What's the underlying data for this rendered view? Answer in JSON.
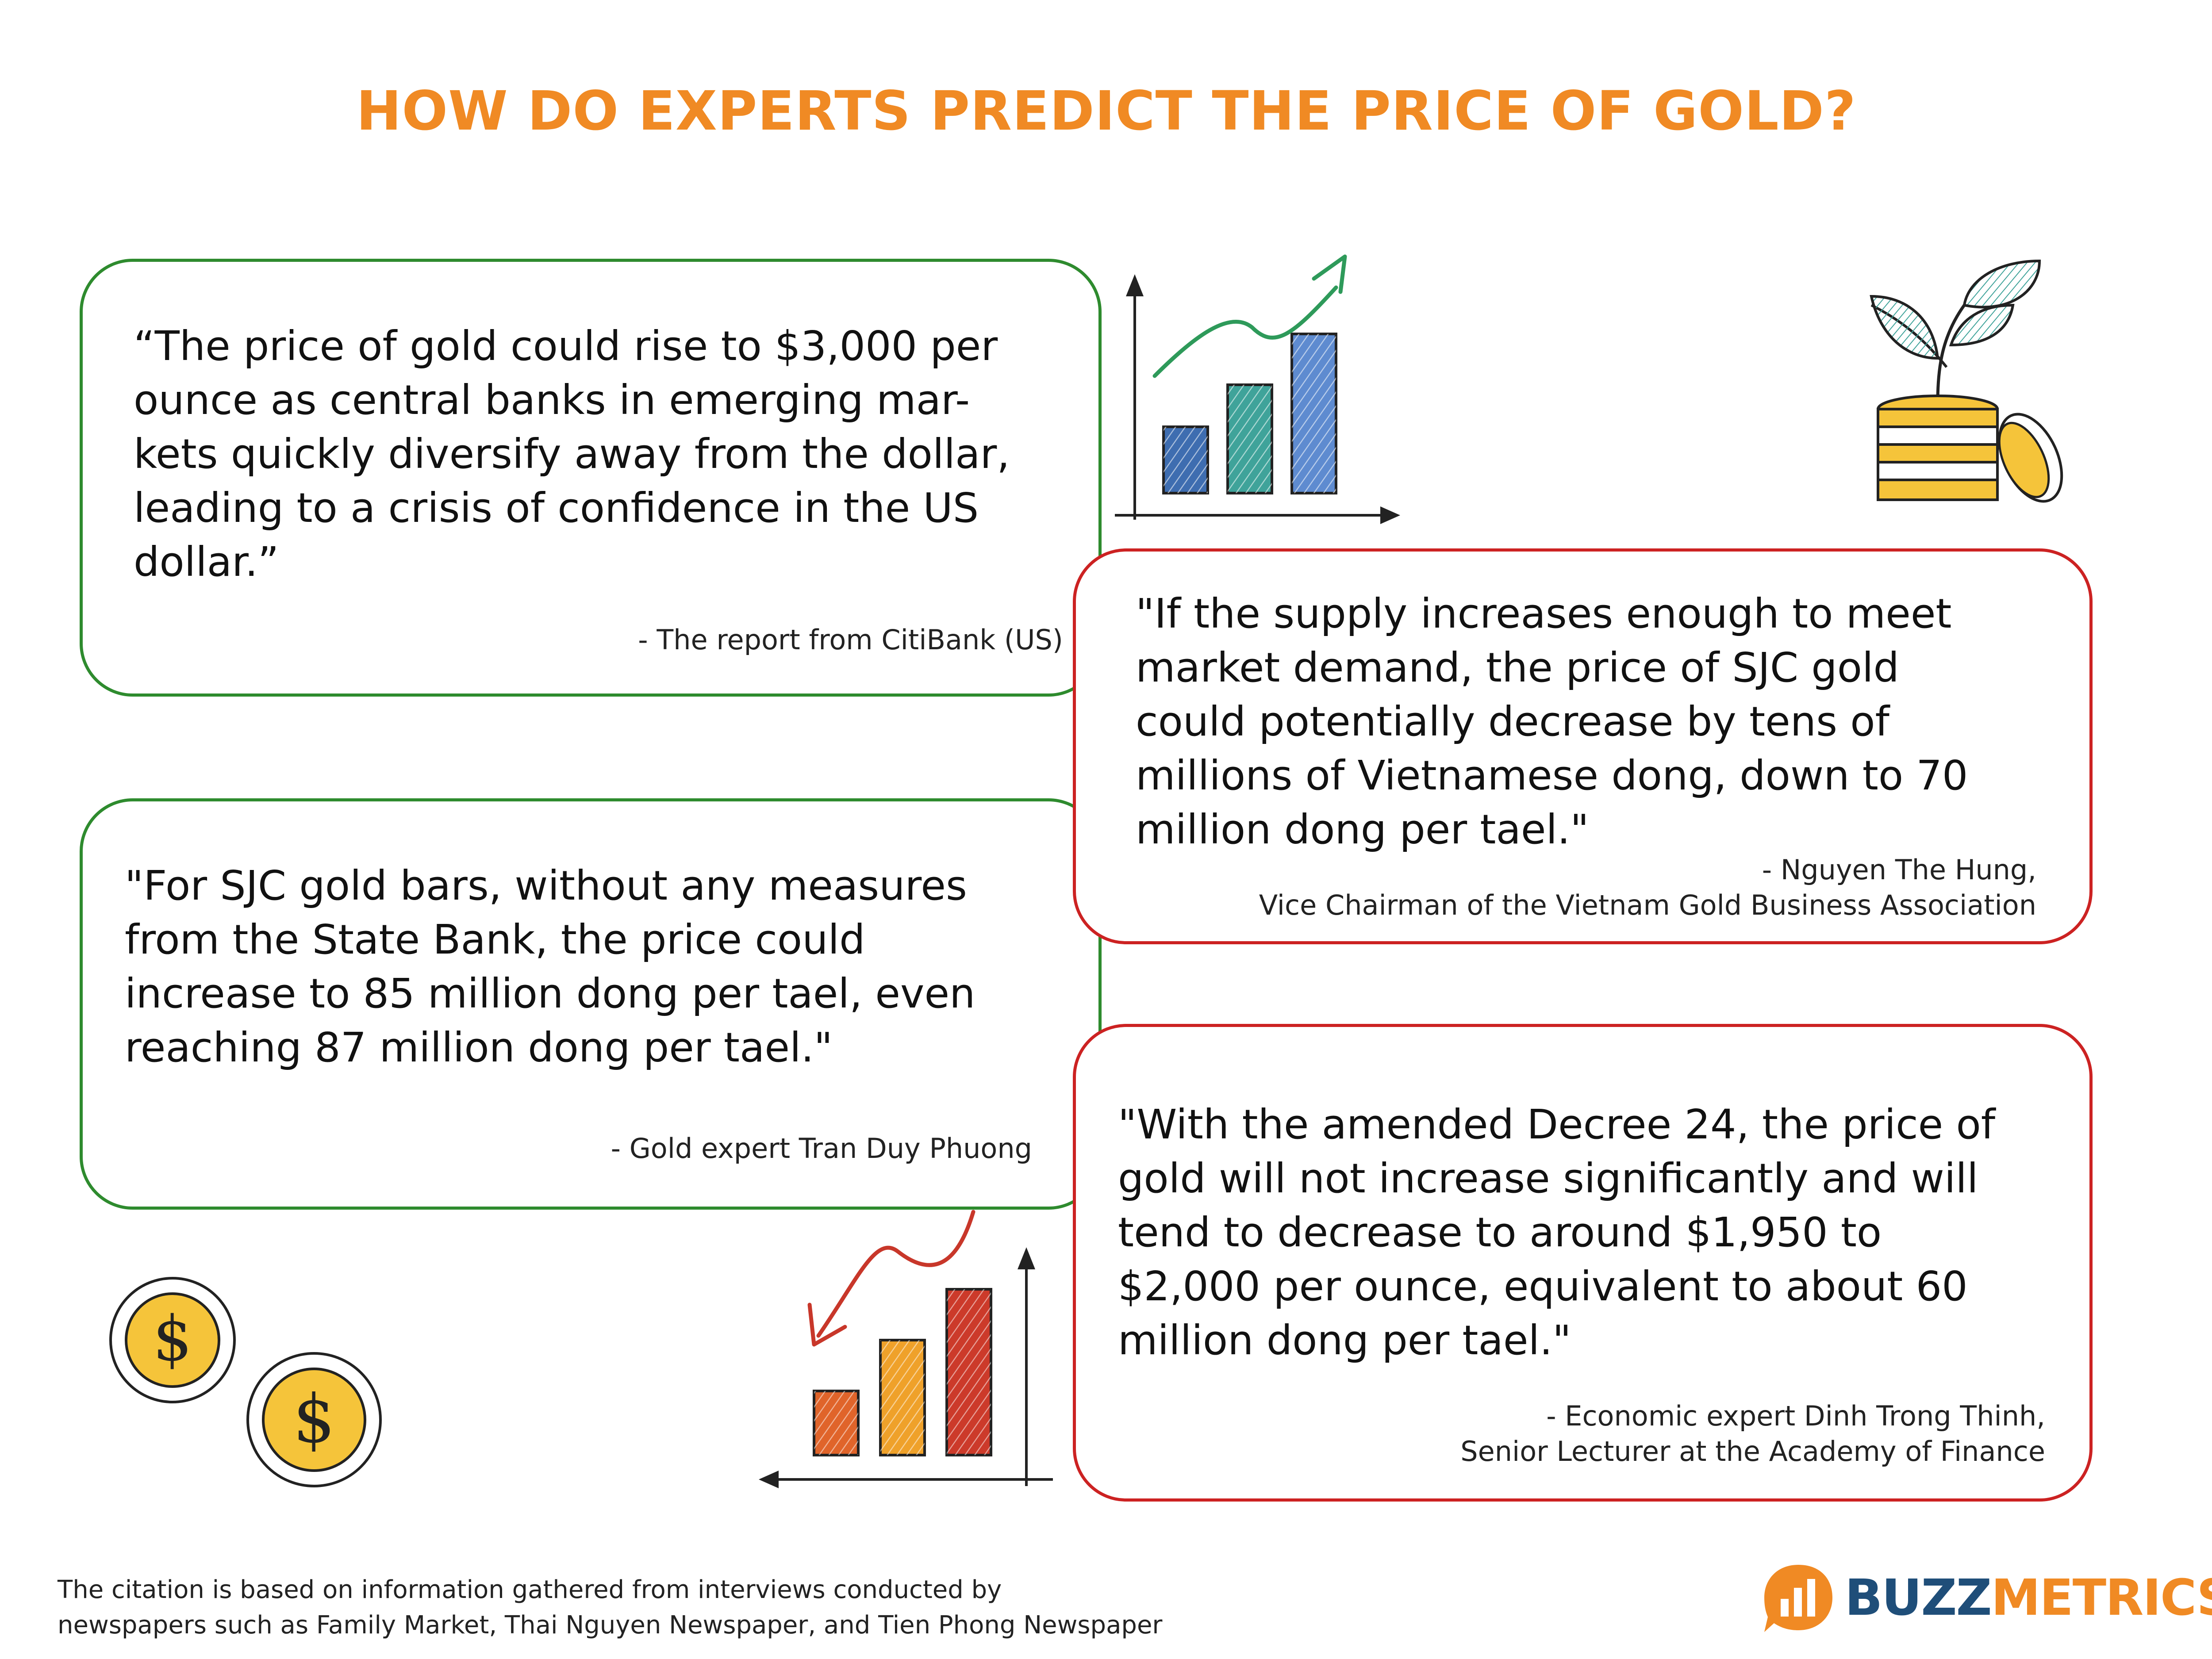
{
  "title": "HOW DO EXPERTS PREDICT THE PRICE OF GOLD?",
  "quotes": {
    "citibank": {
      "lines": [
        "“The price of gold could rise to $3,000 per",
        "ounce as central banks in emerging mar-",
        "kets quickly diversify away from the dollar,",
        "leading to a crisis of confidence in the US",
        "dollar.”"
      ],
      "attribution": "- The report from CitiBank (US)"
    },
    "nguyen_the_hung": {
      "lines": [
        "\"If the supply increases enough to meet",
        "market demand, the price of SJC gold",
        "could potentially decrease by tens of",
        "millions of Vietnamese dong, down to 70",
        "million dong per tael.\""
      ],
      "attribution_lines": [
        "- Nguyen The Hung,",
        "Vice Chairman of the Vietnam Gold Business Association"
      ]
    },
    "tran_duy_phuong": {
      "lines": [
        "\"For SJC gold bars, without any measures",
        "from the State Bank, the price could",
        "increase to 85 million dong per tael, even",
        "reaching 87 million dong per tael.\""
      ],
      "attribution": "- Gold expert Tran Duy Phuong"
    },
    "dinh_trong_thinh": {
      "lines": [
        "\"With the amended Decree 24, the price of",
        "gold will not increase significantly and will",
        "tend to decrease to around $1,950 to",
        "$2,000 per ounce, equivalent to about 60",
        "million dong per tael.\""
      ],
      "attribution_lines": [
        "- Economic expert Dinh Trong Thinh,",
        "Senior Lecturer at the Academy of Finance"
      ]
    }
  },
  "footnote": {
    "lines": [
      "The citation is based on information gathered from interviews conducted by",
      "newspapers such as Family Market, Thai Nguyen Newspaper, and Tien Phong Newspaper"
    ]
  },
  "logo": {
    "part1": "BUZZ",
    "part2": "METRICS",
    "color_part1": "#1F4E79",
    "color_part2": "#F08A24"
  },
  "icons": {
    "rising_chart": "bar-chart-up-icon",
    "falling_chart": "bar-chart-down-icon",
    "plant_coins": "plant-coins-icon",
    "dollar_coins": "dollar-coins-icon"
  },
  "colors": {
    "title": "#F08A24",
    "green_border": "#2E8B2E",
    "red_border": "#CC2222"
  }
}
